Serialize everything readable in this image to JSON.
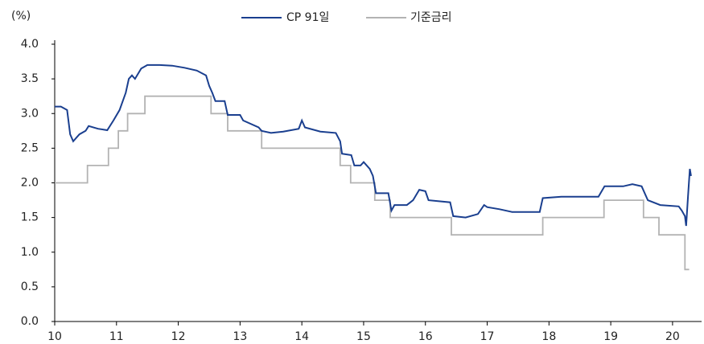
{
  "chart_data": {
    "type": "line",
    "y_label": "(%)",
    "xlim": [
      10,
      20.47
    ],
    "xticks": [
      10,
      11,
      12,
      13,
      14,
      15,
      16,
      17,
      18,
      19,
      20
    ],
    "ylim": [
      0,
      4
    ],
    "yticks": [
      {
        "value": 0,
        "label": "0.0"
      },
      0.5,
      {
        "value": 1,
        "label": "1.0"
      },
      1.5,
      {
        "value": 2,
        "label": "2.0"
      },
      2.5,
      {
        "value": 3,
        "label": "3.0"
      },
      3.5,
      {
        "value": 4,
        "label": "4.0"
      }
    ],
    "legend": "top",
    "series": [
      {
        "name": "CP 91일",
        "color": "#1a3f8f",
        "x": [
          10,
          10.1,
          10.2,
          10.25,
          10.3,
          10.4,
          10.5,
          10.55,
          10.7,
          10.85,
          10.95,
          11.05,
          11.15,
          11.2,
          11.25,
          11.3,
          11.4,
          11.5,
          11.7,
          11.9,
          12.1,
          12.3,
          12.45,
          12.5,
          12.55,
          12.6,
          12.75,
          12.8,
          13.0,
          13.05,
          13.3,
          13.35,
          13.5,
          13.7,
          13.95,
          14.0,
          14.05,
          14.3,
          14.55,
          14.62,
          14.65,
          14.8,
          14.85,
          14.95,
          15.0,
          15.1,
          15.15,
          15.2,
          15.4,
          15.45,
          15.5,
          15.7,
          15.8,
          15.9,
          16.0,
          16.05,
          16.4,
          16.45,
          16.65,
          16.85,
          16.95,
          17.0,
          17.2,
          17.4,
          17.85,
          17.9,
          18.2,
          18.6,
          18.8,
          18.9,
          19.2,
          19.35,
          19.5,
          19.6,
          19.8,
          20.1,
          20.15,
          20.2,
          20.22,
          20.25,
          20.28,
          20.3
        ],
        "values": [
          3.1,
          3.1,
          3.05,
          2.7,
          2.6,
          2.7,
          2.75,
          2.82,
          2.78,
          2.76,
          2.9,
          3.05,
          3.3,
          3.5,
          3.55,
          3.5,
          3.65,
          3.7,
          3.7,
          3.69,
          3.66,
          3.62,
          3.55,
          3.4,
          3.3,
          3.18,
          3.18,
          2.98,
          2.98,
          2.9,
          2.8,
          2.75,
          2.72,
          2.74,
          2.78,
          2.9,
          2.8,
          2.74,
          2.72,
          2.6,
          2.42,
          2.4,
          2.25,
          2.25,
          2.3,
          2.2,
          2.1,
          1.85,
          1.85,
          1.6,
          1.68,
          1.68,
          1.75,
          1.9,
          1.88,
          1.75,
          1.72,
          1.52,
          1.5,
          1.55,
          1.68,
          1.65,
          1.62,
          1.58,
          1.58,
          1.78,
          1.8,
          1.8,
          1.8,
          1.95,
          1.95,
          1.98,
          1.95,
          1.75,
          1.68,
          1.66,
          1.6,
          1.52,
          1.38,
          1.8,
          2.2,
          2.1
        ]
      },
      {
        "name": "기준금리",
        "color": "#b3b3b3",
        "x": [
          10,
          10.53,
          10.53,
          10.87,
          10.87,
          11.03,
          11.03,
          11.18,
          11.18,
          11.46,
          11.46,
          12.53,
          12.53,
          12.8,
          12.8,
          13.35,
          13.35,
          14.62,
          14.62,
          14.79,
          14.79,
          15.18,
          15.18,
          15.43,
          15.43,
          16.42,
          16.42,
          17.9,
          17.9,
          18.89,
          18.89,
          19.53,
          19.53,
          19.78,
          19.78,
          20.2,
          20.2,
          20.27
        ],
        "values": [
          2.0,
          2.0,
          2.25,
          2.25,
          2.5,
          2.5,
          2.75,
          2.75,
          3.0,
          3.0,
          3.25,
          3.25,
          3.0,
          3.0,
          2.75,
          2.75,
          2.5,
          2.5,
          2.25,
          2.25,
          2.0,
          2.0,
          1.75,
          1.75,
          1.5,
          1.5,
          1.25,
          1.25,
          1.5,
          1.5,
          1.75,
          1.75,
          1.5,
          1.5,
          1.25,
          1.25,
          0.75,
          0.75
        ]
      }
    ]
  }
}
